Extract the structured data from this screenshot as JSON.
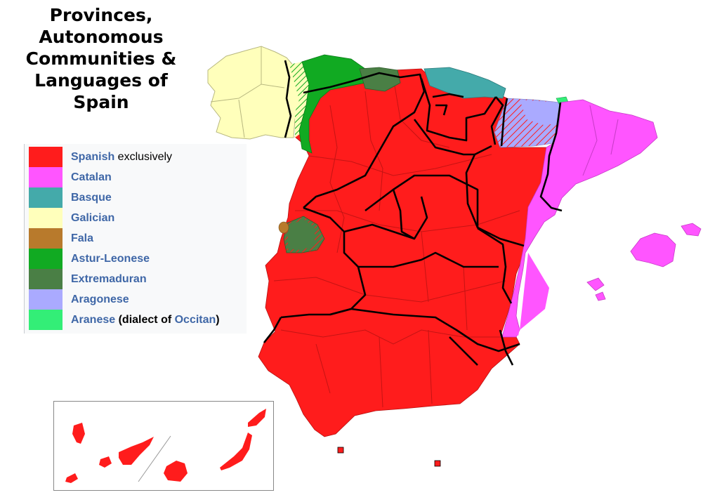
{
  "title": {
    "line1": "Provinces,",
    "line2": "Autonomous",
    "line3": "Communities &",
    "line4": "Languages of",
    "line5": "Spain"
  },
  "legend": [
    {
      "label": "Spanish",
      "suffix": " exclusively",
      "color": "#ff1c1c"
    },
    {
      "label": "Catalan",
      "suffix": "",
      "color": "#ff55ff"
    },
    {
      "label": "Basque",
      "suffix": "",
      "color": "#44aaaa"
    },
    {
      "label": "Galician",
      "suffix": "",
      "color": "#ffffbb"
    },
    {
      "label": "Fala",
      "suffix": "",
      "color": "#b87a2c"
    },
    {
      "label": "Astur-Leonese",
      "suffix": "",
      "color": "#11aa22"
    },
    {
      "label": "Extremaduran",
      "suffix": "",
      "color": "#4a7f45"
    },
    {
      "label": "Aragonese",
      "suffix": "",
      "color": "#aaaaff"
    },
    {
      "label": "Aranese",
      "suffix": "",
      "color": "#33ee77"
    }
  ],
  "aranese_note": {
    "open": " (dialect of ",
    "link": "Occitan",
    "close": ")"
  },
  "colors": {
    "spanish": "#ff1c1c",
    "catalan": "#ff55ff",
    "basque": "#44aaaa",
    "galician": "#ffffbb",
    "fala": "#b87a2c",
    "asturleonese": "#11aa22",
    "extremaduran": "#4a7f45",
    "aragonese": "#aaaaff",
    "aranese": "#33ee77",
    "link": "#3f67a7"
  }
}
